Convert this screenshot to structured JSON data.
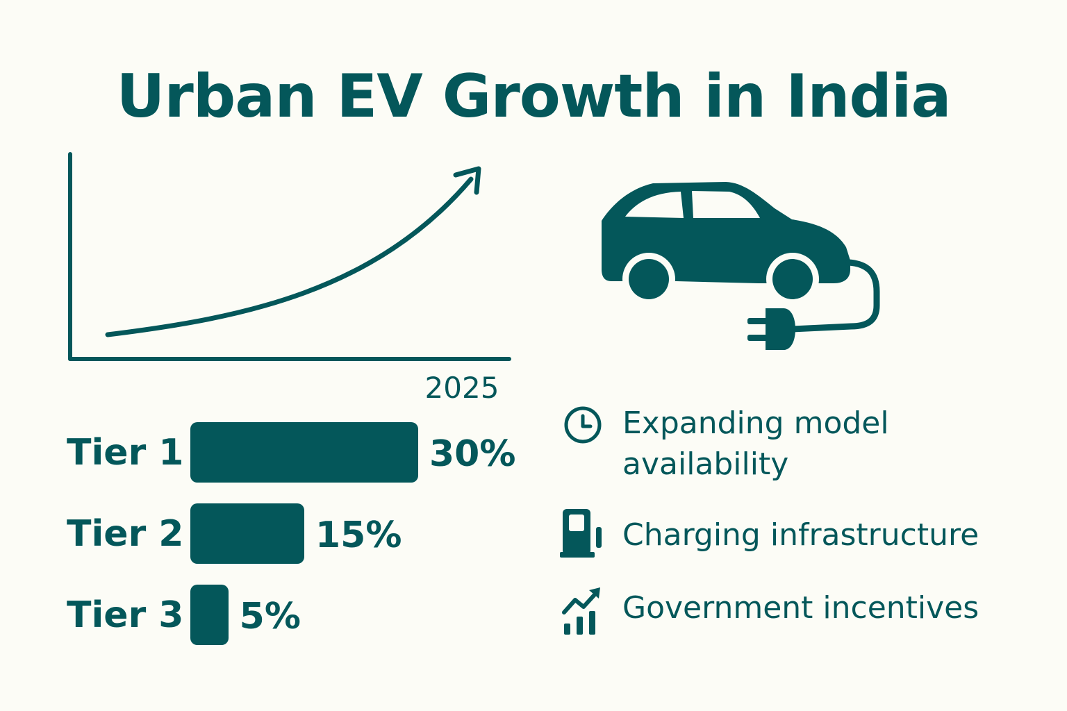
{
  "title": "Urban EV Growth in India",
  "trend": {
    "xlabel": "2025"
  },
  "chart_data": [
    {
      "type": "line",
      "title": "",
      "x_tick_labels": [
        "2025"
      ],
      "description_shape": "rising curve with arrow",
      "values": [
        1,
        1.4,
        2.1,
        3.3,
        5.2,
        8.0
      ]
    },
    {
      "type": "bar",
      "orientation": "horizontal",
      "categories": [
        "Tier 1",
        "Tier 2",
        "Tier 3"
      ],
      "values": [
        30,
        15,
        5
      ],
      "value_labels": [
        "30%",
        "15%",
        "5%"
      ],
      "unit": "%"
    }
  ],
  "drivers": [
    {
      "icon": "clock-icon",
      "label": "Expanding model availability"
    },
    {
      "icon": "fuel-pump-icon",
      "label": "Charging infrastructure"
    },
    {
      "icon": "growth-bars-icon",
      "label": "Government incentives"
    }
  ],
  "colors": {
    "accent": "#04575a",
    "background": "#fcfcf6"
  }
}
